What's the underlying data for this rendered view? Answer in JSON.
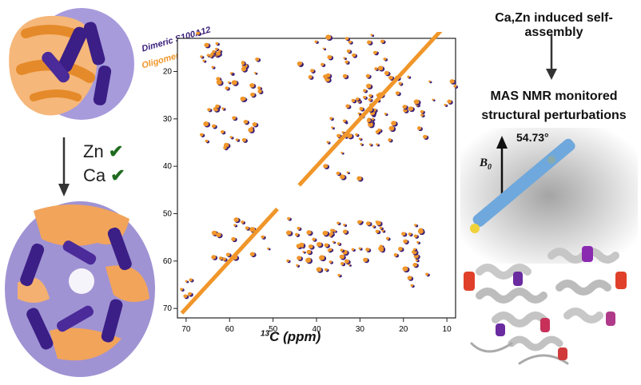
{
  "legend": {
    "dimeric": "Dimeric S100A12",
    "oligomeric": "Oligomeric S100A12",
    "dimeric_color": "#3a1f7a",
    "oligomeric_color": "#f0962a"
  },
  "spectrum": {
    "x_axis_label_sup": "13",
    "x_axis_label": "C (ppm)",
    "x_ticks": [
      "70",
      "60",
      "50",
      "40",
      "30",
      "20",
      "10"
    ],
    "y_ticks": [
      "20",
      "30",
      "40",
      "50",
      "60",
      "70"
    ]
  },
  "ions": [
    {
      "label": "Zn",
      "check": "✔"
    },
    {
      "label": "Ca",
      "check": "✔"
    }
  ],
  "steps": {
    "self_assembly": "Ca,Zn induced self-assembly",
    "mas_line1": "MAS NMR monitored",
    "mas_line2": "structural perturbations"
  },
  "rotor": {
    "angle": "54.73°",
    "field_symbol": "B",
    "field_sub": "0"
  },
  "icons": {
    "dimer": "protein-dimer-structure",
    "oligomer": "protein-oligomer-structure",
    "ribbon": "protein-ribbon-structure"
  }
}
